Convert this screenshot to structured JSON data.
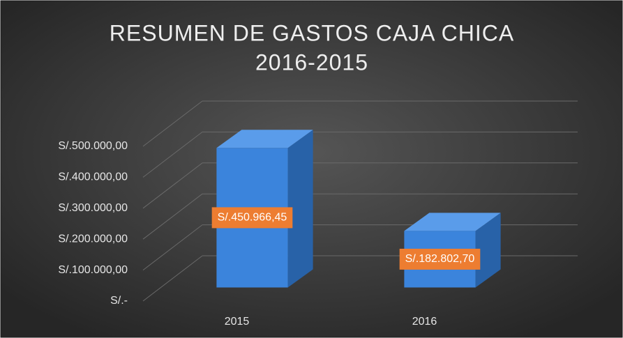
{
  "chart_data": {
    "type": "bar3d",
    "title": [
      "RESUMEN DE GASTOS CAJA CHICA",
      "2016-2015"
    ],
    "categories": [
      "2015",
      "2016"
    ],
    "values": [
      450966.45,
      182802.7
    ],
    "value_labels": [
      "S/.450.966,45",
      "S/.182.802,70"
    ],
    "color": "#3b84dc",
    "label_color": "#ed7d31",
    "ylim": [
      0,
      500000
    ],
    "yticks": [
      {
        "value": 0,
        "label": "S/.-"
      },
      {
        "value": 100000,
        "label": "S/.100.000,00"
      },
      {
        "value": 200000,
        "label": "S/.200.000,00"
      },
      {
        "value": 300000,
        "label": "S/.300.000,00"
      },
      {
        "value": 400000,
        "label": "S/.400.000,00"
      },
      {
        "value": 500000,
        "label": "S/.500.000,00"
      }
    ],
    "grid": true
  }
}
